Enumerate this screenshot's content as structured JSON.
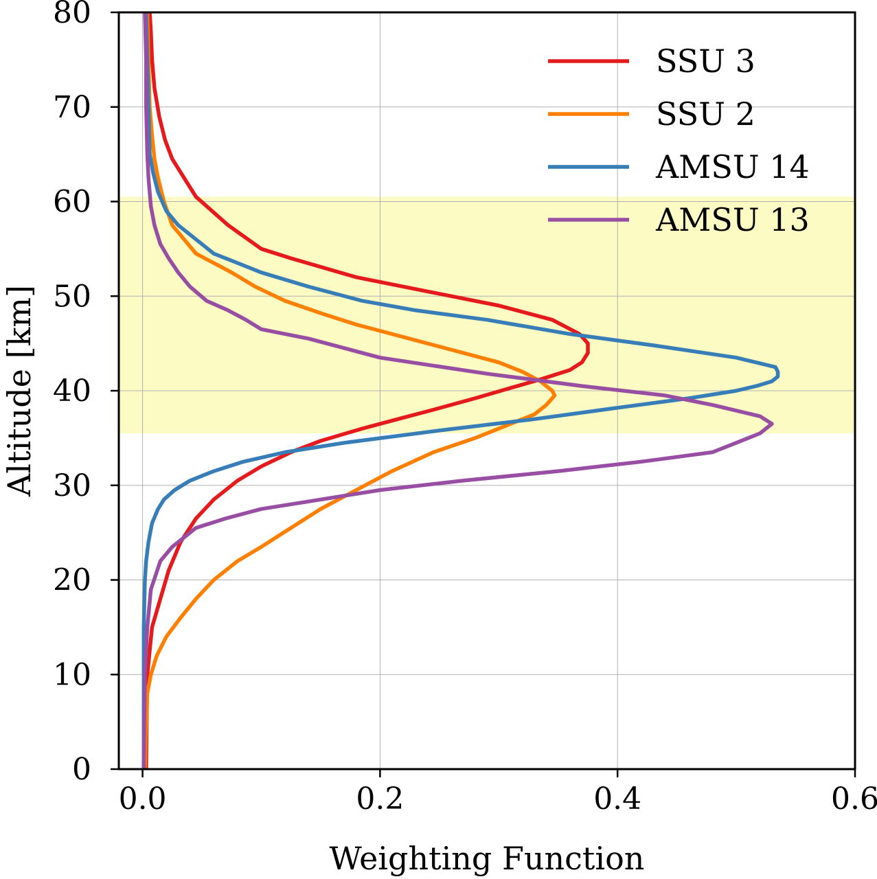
{
  "chart_data": {
    "type": "line",
    "xlabel": "Weighting Function",
    "ylabel": "Altitude [km]",
    "xlim": [
      -0.02,
      0.6
    ],
    "ylim": [
      0,
      80
    ],
    "xticks": [
      0.0,
      0.2,
      0.4,
      0.6
    ],
    "xtick_labels": [
      "0.0",
      "0.2",
      "0.4",
      "0.6"
    ],
    "yticks": [
      0,
      10,
      20,
      30,
      40,
      50,
      60,
      70,
      80
    ],
    "ytick_labels": [
      "0",
      "10",
      "20",
      "30",
      "40",
      "50",
      "60",
      "70",
      "80"
    ],
    "grid": true,
    "legend_position": "top-right",
    "highlight_band": {
      "y_range": [
        35.5,
        60.5
      ],
      "color": "#fdfbc4"
    },
    "series": [
      {
        "name": "SSU 3",
        "color": "#e41a1c",
        "points": [
          [
            0.003,
            0
          ],
          [
            0.004,
            10
          ],
          [
            0.008,
            15
          ],
          [
            0.015,
            18
          ],
          [
            0.022,
            21
          ],
          [
            0.032,
            24
          ],
          [
            0.045,
            26.5
          ],
          [
            0.06,
            28.5
          ],
          [
            0.08,
            30.5
          ],
          [
            0.1,
            32
          ],
          [
            0.125,
            33.5
          ],
          [
            0.15,
            34.7
          ],
          [
            0.185,
            36
          ],
          [
            0.215,
            37
          ],
          [
            0.245,
            38
          ],
          [
            0.28,
            39.2
          ],
          [
            0.31,
            40.3
          ],
          [
            0.335,
            41.2
          ],
          [
            0.36,
            42.2
          ],
          [
            0.37,
            43
          ],
          [
            0.375,
            44
          ],
          [
            0.375,
            45
          ],
          [
            0.368,
            46
          ],
          [
            0.345,
            47.5
          ],
          [
            0.3,
            49
          ],
          [
            0.24,
            50.5
          ],
          [
            0.18,
            52
          ],
          [
            0.125,
            54
          ],
          [
            0.1,
            55
          ],
          [
            0.072,
            57.5
          ],
          [
            0.045,
            60.5
          ],
          [
            0.035,
            62.5
          ],
          [
            0.025,
            64.5
          ],
          [
            0.019,
            66.5
          ],
          [
            0.014,
            69
          ],
          [
            0.01,
            72
          ],
          [
            0.008,
            75
          ],
          [
            0.007,
            78
          ],
          [
            0.006,
            80
          ]
        ]
      },
      {
        "name": "SSU 2",
        "color": "#ff7f00",
        "points": [
          [
            0.002,
            0
          ],
          [
            0.004,
            8
          ],
          [
            0.007,
            10
          ],
          [
            0.012,
            12
          ],
          [
            0.02,
            14
          ],
          [
            0.032,
            16
          ],
          [
            0.045,
            18
          ],
          [
            0.06,
            20
          ],
          [
            0.08,
            22
          ],
          [
            0.1,
            23.5
          ],
          [
            0.125,
            25.5
          ],
          [
            0.15,
            27.5
          ],
          [
            0.18,
            29.5
          ],
          [
            0.21,
            31.5
          ],
          [
            0.245,
            33.5
          ],
          [
            0.28,
            35
          ],
          [
            0.31,
            36.5
          ],
          [
            0.33,
            37.5
          ],
          [
            0.34,
            38.5
          ],
          [
            0.347,
            39.5
          ],
          [
            0.345,
            40
          ],
          [
            0.335,
            41
          ],
          [
            0.32,
            42
          ],
          [
            0.3,
            43
          ],
          [
            0.27,
            44
          ],
          [
            0.24,
            45
          ],
          [
            0.21,
            46
          ],
          [
            0.18,
            47
          ],
          [
            0.15,
            48.2
          ],
          [
            0.12,
            49.5
          ],
          [
            0.095,
            51
          ],
          [
            0.075,
            52.5
          ],
          [
            0.06,
            53.5
          ],
          [
            0.045,
            54.5
          ],
          [
            0.035,
            56
          ],
          [
            0.025,
            57.5
          ],
          [
            0.018,
            60
          ],
          [
            0.013,
            62.5
          ],
          [
            0.01,
            64.5
          ],
          [
            0.008,
            67
          ],
          [
            0.006,
            70
          ],
          [
            0.005,
            75
          ],
          [
            0.004,
            80
          ]
        ]
      },
      {
        "name": "AMSU 14",
        "color": "#377eb8",
        "points": [
          [
            0.001,
            0
          ],
          [
            0.001,
            15
          ],
          [
            0.002,
            20
          ],
          [
            0.003,
            22
          ],
          [
            0.005,
            24
          ],
          [
            0.008,
            26
          ],
          [
            0.013,
            27.5
          ],
          [
            0.018,
            28.5
          ],
          [
            0.027,
            29.5
          ],
          [
            0.04,
            30.5
          ],
          [
            0.06,
            31.5
          ],
          [
            0.085,
            32.5
          ],
          [
            0.12,
            33.5
          ],
          [
            0.17,
            34.5
          ],
          [
            0.25,
            35.8
          ],
          [
            0.33,
            37
          ],
          [
            0.4,
            38.2
          ],
          [
            0.46,
            39.2
          ],
          [
            0.5,
            40
          ],
          [
            0.517,
            40.5
          ],
          [
            0.53,
            41
          ],
          [
            0.535,
            41.5
          ],
          [
            0.535,
            42
          ],
          [
            0.533,
            42.5
          ],
          [
            0.5,
            43.5
          ],
          [
            0.43,
            44.8
          ],
          [
            0.36,
            46
          ],
          [
            0.29,
            47.5
          ],
          [
            0.23,
            48.5
          ],
          [
            0.185,
            49.5
          ],
          [
            0.14,
            51
          ],
          [
            0.1,
            52.5
          ],
          [
            0.08,
            53.5
          ],
          [
            0.06,
            54.5
          ],
          [
            0.045,
            56
          ],
          [
            0.03,
            57.5
          ],
          [
            0.02,
            59
          ],
          [
            0.013,
            61
          ],
          [
            0.009,
            63
          ],
          [
            0.006,
            65
          ],
          [
            0.005,
            70
          ],
          [
            0.004,
            75
          ],
          [
            0.003,
            80
          ]
        ]
      },
      {
        "name": "AMSU 13",
        "color": "#984ea3",
        "points": [
          [
            0.001,
            0
          ],
          [
            0.002,
            10
          ],
          [
            0.004,
            15
          ],
          [
            0.007,
            19
          ],
          [
            0.015,
            22
          ],
          [
            0.025,
            23.5
          ],
          [
            0.045,
            25.5
          ],
          [
            0.07,
            26.5
          ],
          [
            0.1,
            27.5
          ],
          [
            0.14,
            28.3
          ],
          [
            0.2,
            29.5
          ],
          [
            0.27,
            30.5
          ],
          [
            0.35,
            31.5
          ],
          [
            0.42,
            32.5
          ],
          [
            0.48,
            33.5
          ],
          [
            0.5,
            34.5
          ],
          [
            0.52,
            35.5
          ],
          [
            0.53,
            36.5
          ],
          [
            0.52,
            37.3
          ],
          [
            0.48,
            38.5
          ],
          [
            0.44,
            39.5
          ],
          [
            0.37,
            40.5
          ],
          [
            0.29,
            41.8
          ],
          [
            0.2,
            43.5
          ],
          [
            0.14,
            45.5
          ],
          [
            0.1,
            46.5
          ],
          [
            0.087,
            47.5
          ],
          [
            0.072,
            48.5
          ],
          [
            0.054,
            49.5
          ],
          [
            0.04,
            51
          ],
          [
            0.03,
            52.5
          ],
          [
            0.022,
            54
          ],
          [
            0.015,
            55.5
          ],
          [
            0.01,
            57.5
          ],
          [
            0.007,
            59.5
          ],
          [
            0.005,
            62.5
          ],
          [
            0.004,
            65
          ],
          [
            0.003,
            70
          ],
          [
            0.003,
            75
          ],
          [
            0.002,
            80
          ]
        ]
      }
    ]
  }
}
